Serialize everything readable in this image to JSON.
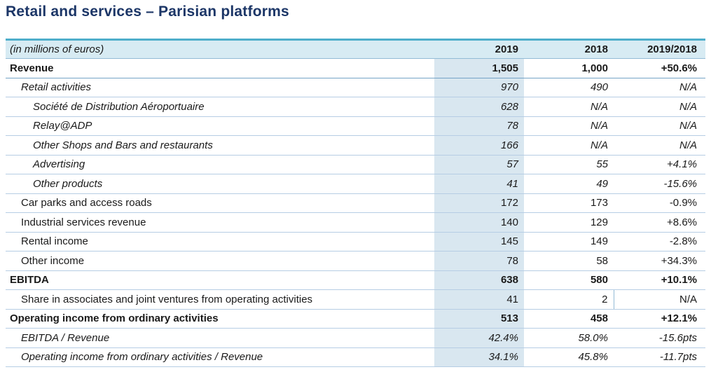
{
  "title": "Retail and services – Parisian platforms",
  "table": {
    "unit_label": "(in millions of euros)",
    "columns": [
      "2019",
      "2018",
      "2019/2018"
    ],
    "rows": [
      {
        "label": "Revenue",
        "v2019": "1,505",
        "v2018": "1,000",
        "change": "+50.6%",
        "style": "bold",
        "indent": 0,
        "strong_border": true
      },
      {
        "label": "Retail activities",
        "v2019": "970",
        "v2018": "490",
        "change": "N/A",
        "style": "italic",
        "indent": 1
      },
      {
        "label": "Société de Distribution Aéroportuaire",
        "v2019": "628",
        "v2018": "N/A",
        "change": "N/A",
        "style": "italic",
        "indent": 2
      },
      {
        "label": "Relay@ADP",
        "v2019": "78",
        "v2018": "N/A",
        "change": "N/A",
        "style": "italic",
        "indent": 2
      },
      {
        "label": "Other Shops and Bars and restaurants",
        "v2019": "166",
        "v2018": "N/A",
        "change": "N/A",
        "style": "italic",
        "indent": 2
      },
      {
        "label": "Advertising",
        "v2019": "57",
        "v2018": "55",
        "change": "+4.1%",
        "style": "italic",
        "indent": 2
      },
      {
        "label": "Other products",
        "v2019": "41",
        "v2018": "49",
        "change": "-15.6%",
        "style": "italic",
        "indent": 2
      },
      {
        "label": "Car parks and access roads",
        "v2019": "172",
        "v2018": "173",
        "change": "-0.9%",
        "style": "regular",
        "indent": 1
      },
      {
        "label": "Industrial services revenue",
        "v2019": "140",
        "v2018": "129",
        "change": "+8.6%",
        "style": "regular",
        "indent": 1
      },
      {
        "label": "Rental income",
        "v2019": "145",
        "v2018": "149",
        "change": "-2.8%",
        "style": "regular",
        "indent": 1
      },
      {
        "label": "Other income",
        "v2019": "78",
        "v2018": "58",
        "change": "+34.3%",
        "style": "regular",
        "indent": 1
      },
      {
        "label": "EBITDA",
        "v2019": "638",
        "v2018": "580",
        "change": "+10.1%",
        "style": "bold",
        "indent": 0
      },
      {
        "label": "Share in associates and joint ventures from operating activities",
        "v2019": "41",
        "v2018": "2",
        "change": "N/A",
        "style": "regular",
        "indent": 1,
        "boxed_2018": true
      },
      {
        "label": "Operating income from ordinary activities",
        "v2019": "513",
        "v2018": "458",
        "change": "+12.1%",
        "style": "bold",
        "indent": 0
      },
      {
        "label": "EBITDA / Revenue",
        "v2019": "42.4%",
        "v2018": "58.0%",
        "change": "-15.6pts",
        "style": "italic",
        "indent": 1
      },
      {
        "label": "Operating income from ordinary activities / Revenue",
        "v2019": "34.1%",
        "v2018": "45.8%",
        "change": "-11.7pts",
        "style": "italic",
        "indent": 1
      }
    ],
    "colors": {
      "title": "#1C3667",
      "top_border": "#4FAECB",
      "header_bg": "#D7EBF3",
      "col_highlight": "#D9E7F0",
      "separator": "#B6CDE4",
      "separator_strong": "#74A3C6",
      "separator_header": "#93BBD6",
      "text": "#1A1A1A"
    }
  }
}
